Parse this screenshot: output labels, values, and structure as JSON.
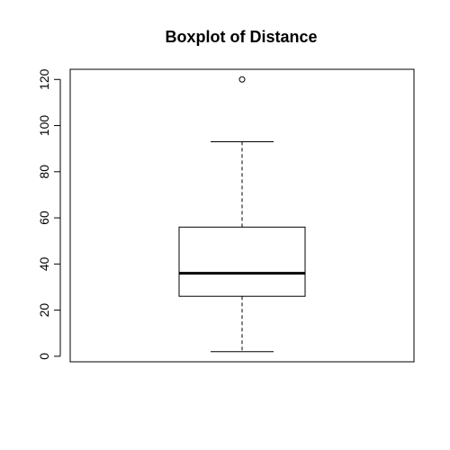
{
  "chart_data": {
    "type": "boxplot",
    "title": "Boxplot of Distance",
    "xlabel": "",
    "ylabel": "",
    "ylim": [
      -2.4,
      124.4
    ],
    "yticks": [
      0,
      20,
      40,
      60,
      80,
      100,
      120
    ],
    "grid": false,
    "legend": "none",
    "box": {
      "whisker_low": 2,
      "q1": 26,
      "median": 36,
      "q3": 56,
      "whisker_high": 93,
      "outliers": [
        120
      ]
    }
  }
}
